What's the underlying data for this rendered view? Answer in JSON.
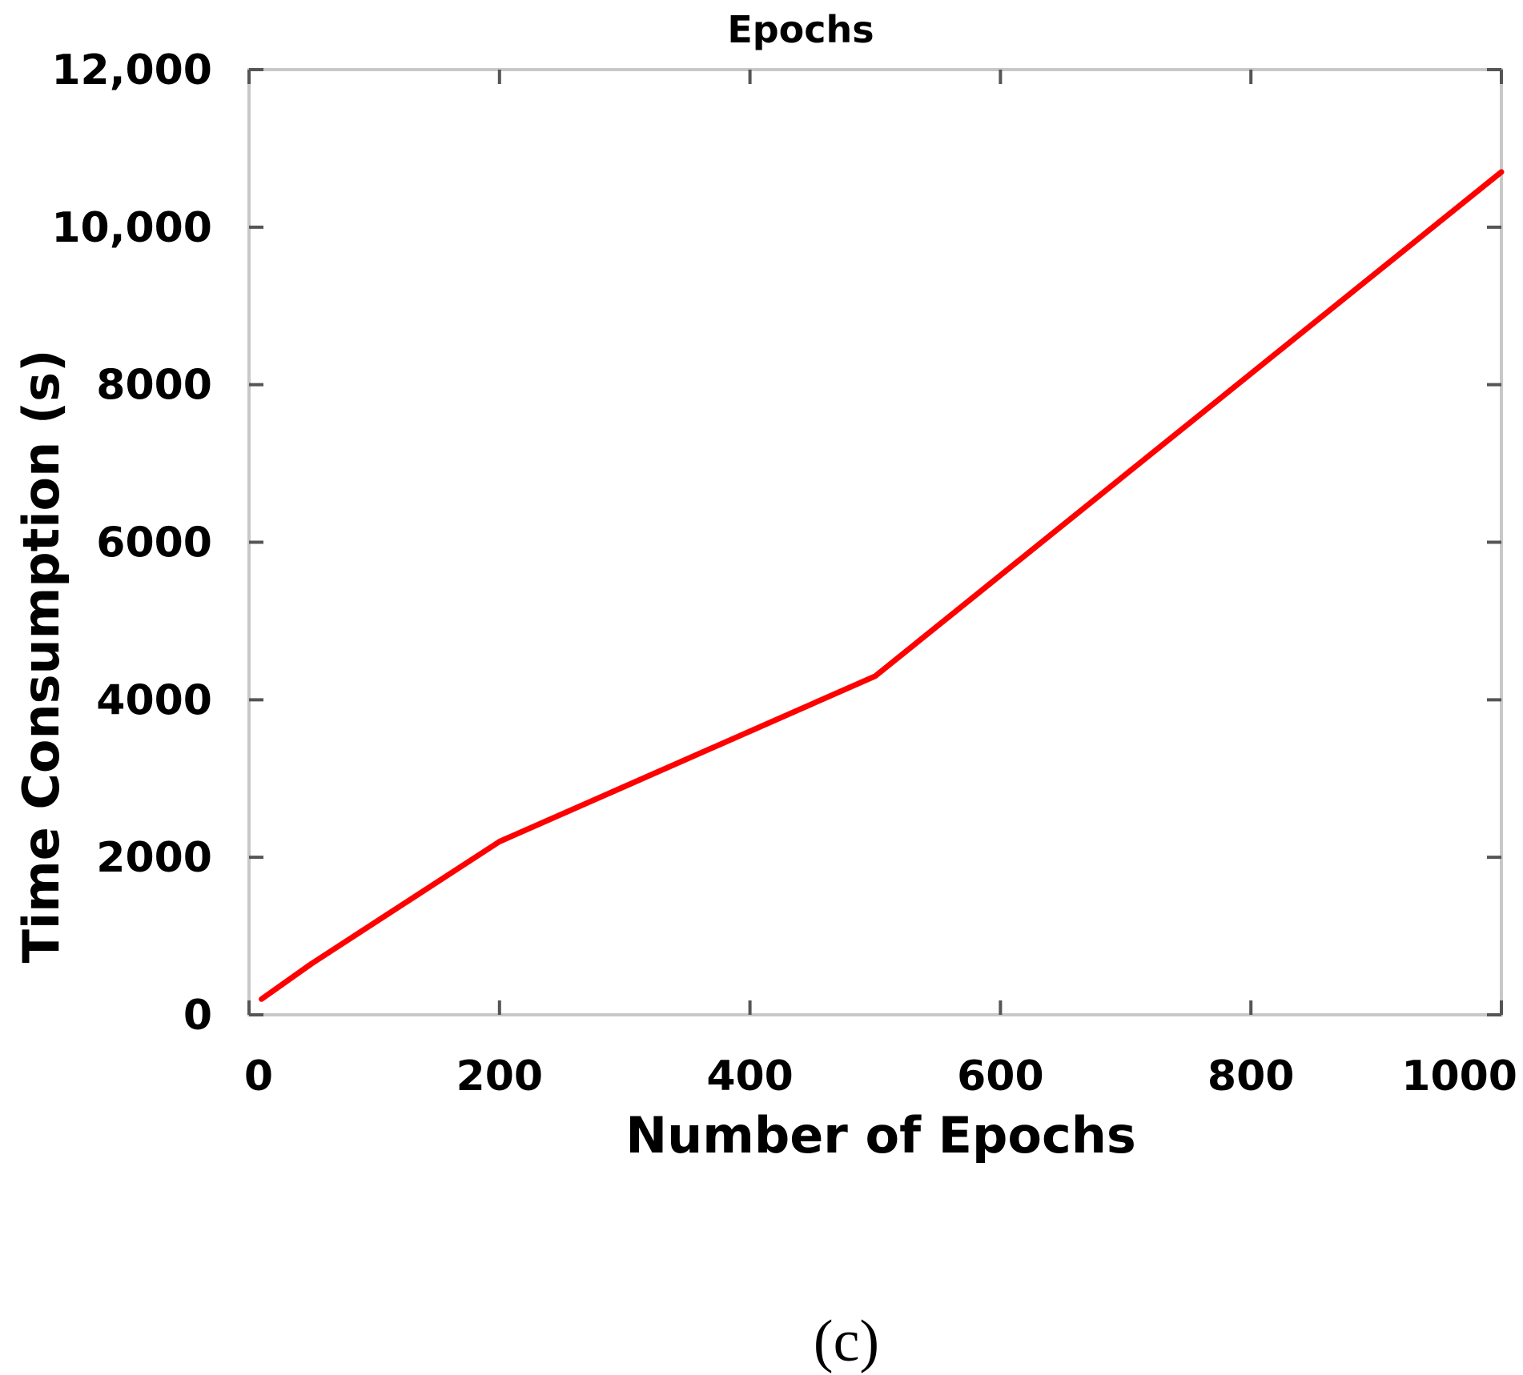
{
  "chart_data": {
    "type": "line",
    "title": "Epochs",
    "xlabel": "Number of Epochs",
    "ylabel": "Time Consumption (s)",
    "xlim": [
      0,
      1000
    ],
    "ylim": [
      0,
      12000
    ],
    "x_ticks": [
      0,
      200,
      400,
      600,
      800,
      1000
    ],
    "x_tick_labels": [
      "0",
      "200",
      "400",
      "600",
      "800",
      "1000"
    ],
    "y_ticks": [
      0,
      2000,
      4000,
      6000,
      8000,
      10000,
      12000
    ],
    "y_tick_labels": [
      "0",
      "2000",
      "4000",
      "6000",
      "8000",
      "10,000",
      "12,000"
    ],
    "grid": false,
    "series": [
      {
        "color": "#ff0000",
        "x": [
          10,
          50,
          200,
          500,
          1000
        ],
        "y": [
          200,
          650,
          2200,
          4300,
          10700
        ]
      }
    ]
  },
  "panel_label": "(c)"
}
